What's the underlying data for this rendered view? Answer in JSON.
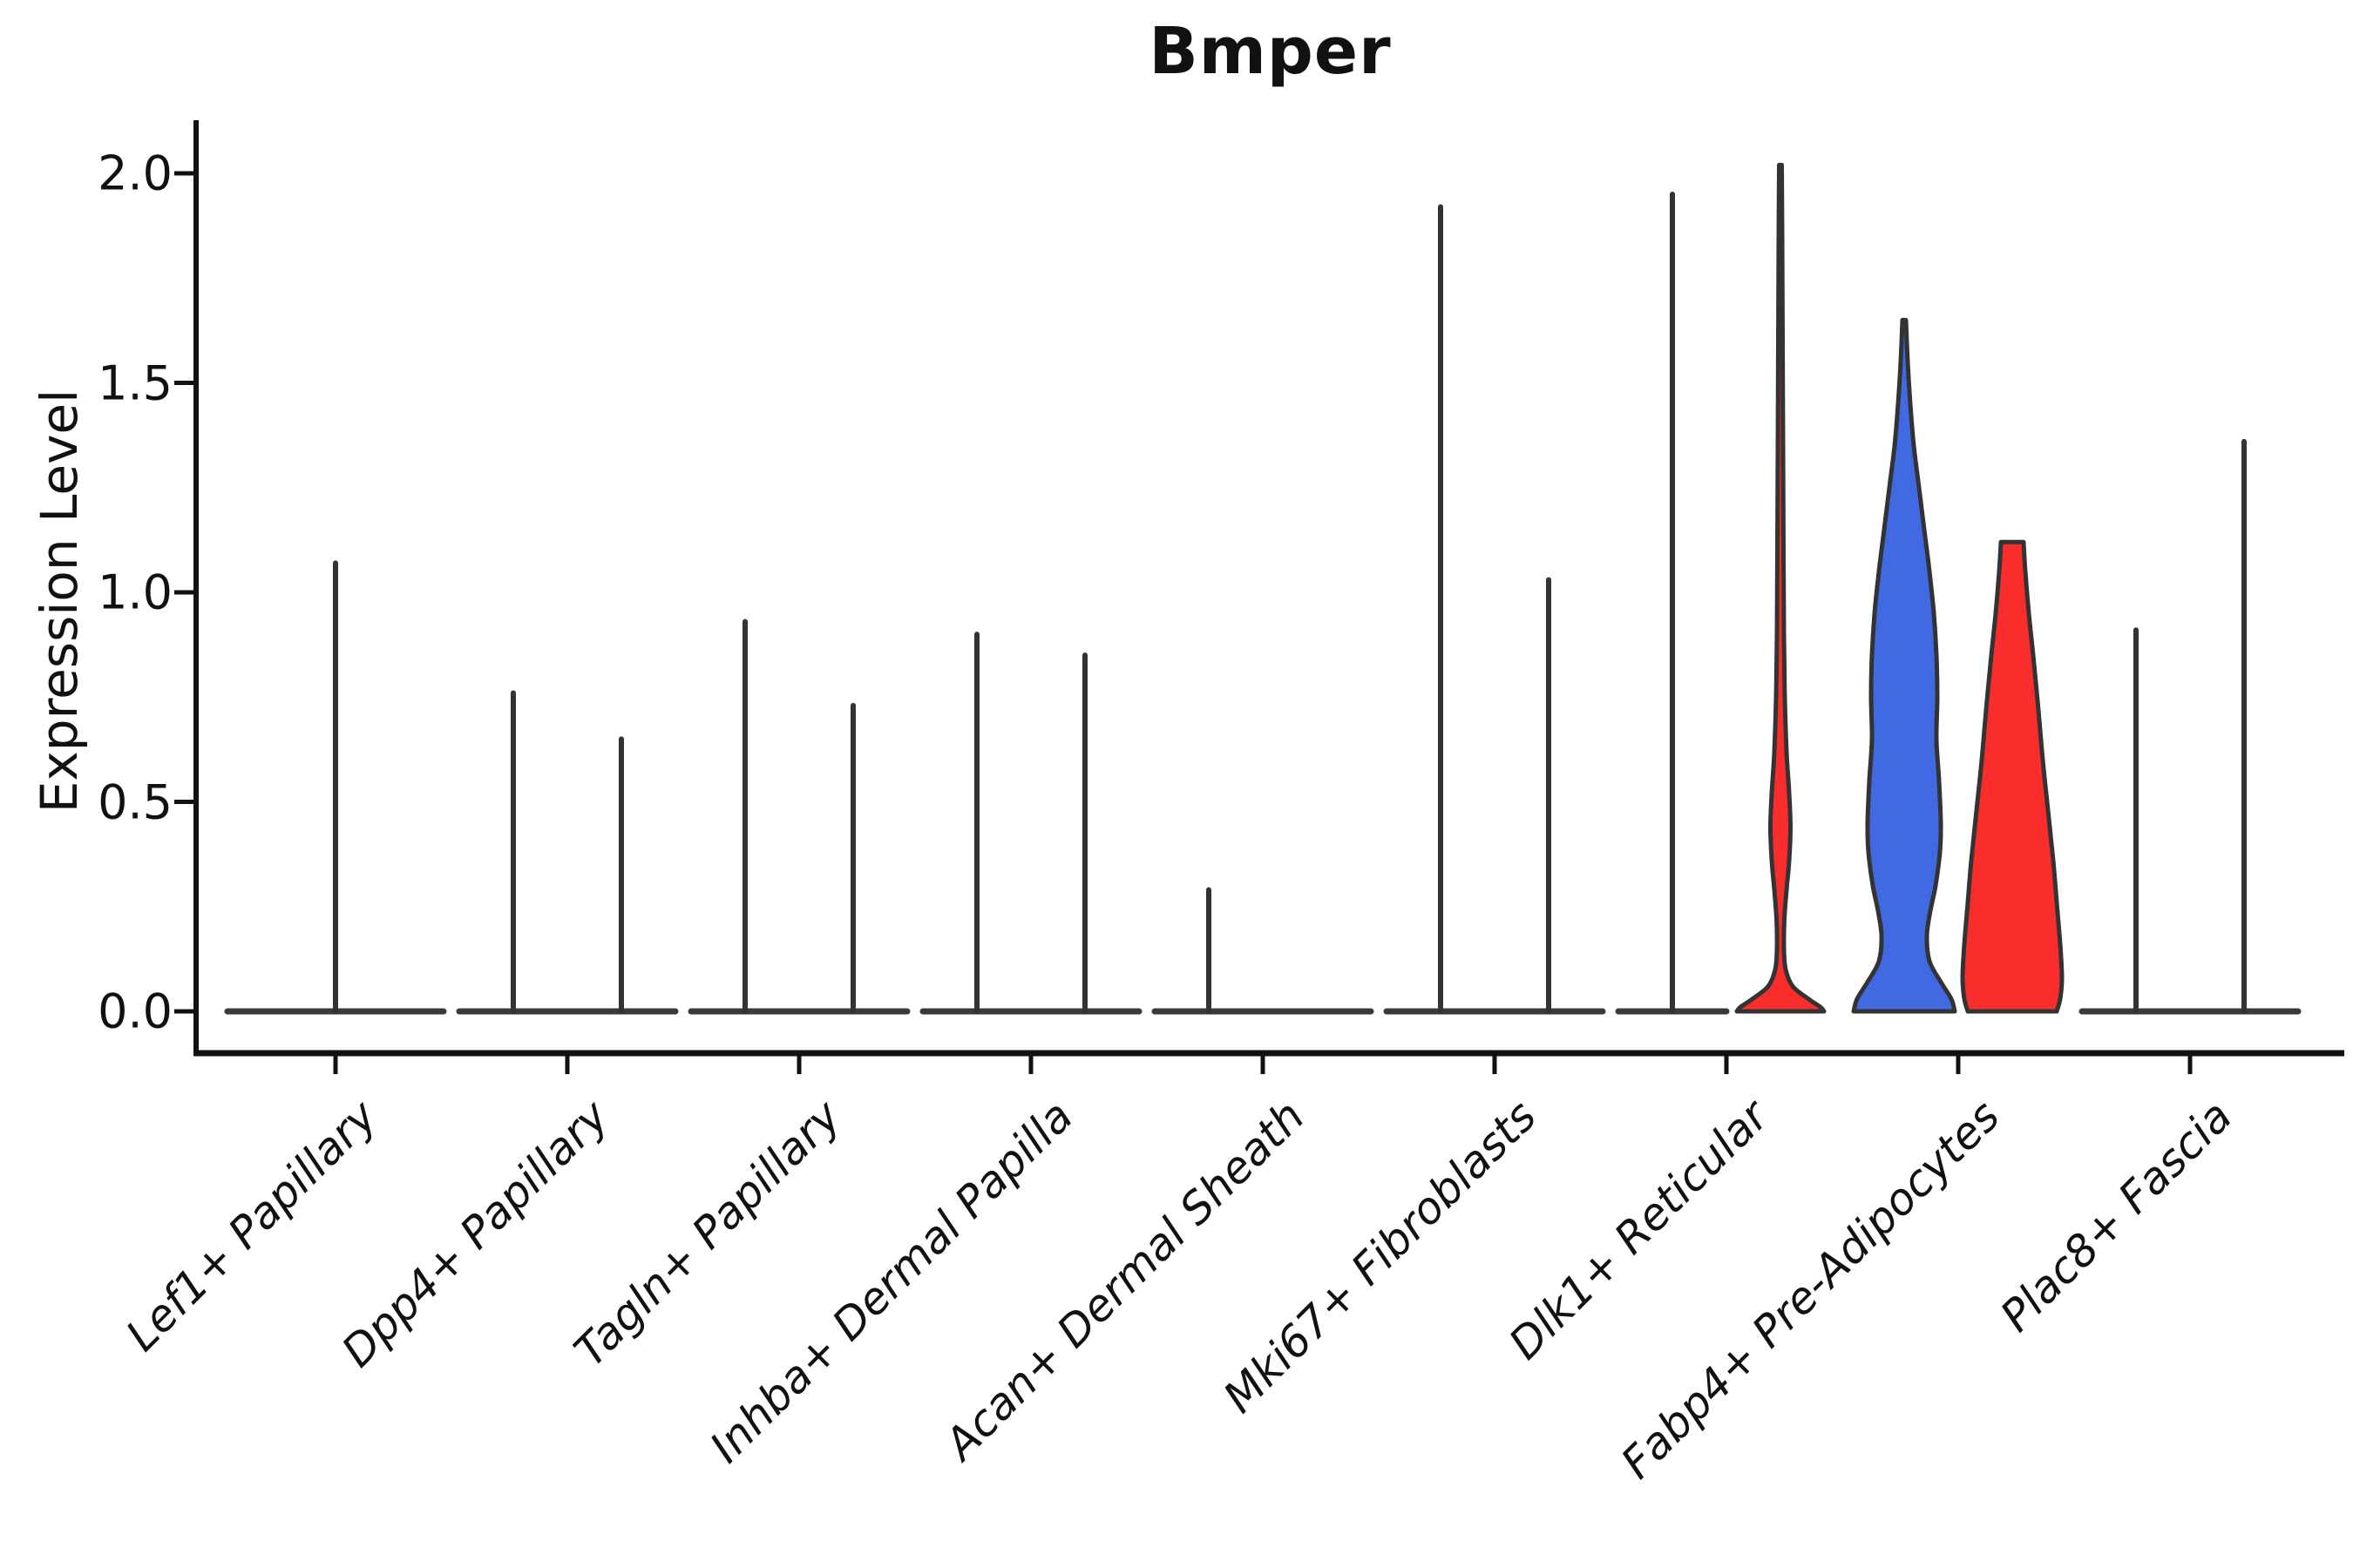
{
  "title": "Bmper",
  "y_axis": {
    "label": "Expression Level",
    "ticks": [
      {
        "label": "2.0",
        "value": 2.0
      },
      {
        "label": "1.5",
        "value": 1.5
      },
      {
        "label": "1.0",
        "value": 1.0
      },
      {
        "label": "0.5",
        "value": 0.5
      },
      {
        "label": "0.0",
        "value": 0.0
      }
    ]
  },
  "x_axis": {
    "categories": [
      "Lef1+ Papillary",
      "Dpp4+ Papillary",
      "Tagln+ Papillary",
      "Inhba+ Dermal Papilla",
      "Acan+ Dermal Sheath",
      "Mki67+ Fibroblasts",
      "Dlk1+ Reticular",
      "Fabp4+ Pre-Adipocytes",
      "Plac8+ Fascia"
    ],
    "label_rotation_deg": 45
  },
  "colors": {
    "blue": "#4169E1",
    "red": "#FA2D2D",
    "violin_outline": "#333333",
    "axis": "#111111"
  },
  "chart_data": {
    "type": "violin",
    "title": "Bmper",
    "ylabel": "Expression Level",
    "ylim": [
      0,
      2.1
    ],
    "grid": false,
    "legend": "none",
    "categories": [
      "Lef1+ Papillary",
      "Dpp4+ Papillary",
      "Tagln+ Papillary",
      "Inhba+ Dermal Papilla",
      "Acan+ Dermal Sheath",
      "Mki67+ Fibroblasts",
      "Dlk1+ Reticular",
      "Fabp4+ Pre-Adipocytes",
      "Plac8+ Fascia"
    ],
    "split_groups": [
      {
        "slot": "left",
        "color": "#4169E1"
      },
      {
        "slot": "right",
        "color": "#FA2D2D"
      }
    ],
    "violins": [
      {
        "category": "Lef1+ Papillary",
        "slot": "full",
        "shape": "spike",
        "max": 1.07,
        "fill": "none"
      },
      {
        "category": "Dpp4+ Papillary",
        "slot": "left",
        "shape": "spike",
        "max": 0.76,
        "fill": "none"
      },
      {
        "category": "Dpp4+ Papillary",
        "slot": "right",
        "shape": "spike",
        "max": 0.65,
        "fill": "none"
      },
      {
        "category": "Tagln+ Papillary",
        "slot": "left",
        "shape": "spike",
        "max": 0.93,
        "fill": "none"
      },
      {
        "category": "Tagln+ Papillary",
        "slot": "right",
        "shape": "spike",
        "max": 0.73,
        "fill": "none"
      },
      {
        "category": "Inhba+ Dermal Papilla",
        "slot": "left",
        "shape": "spike",
        "max": 0.9,
        "fill": "none"
      },
      {
        "category": "Inhba+ Dermal Papilla",
        "slot": "right",
        "shape": "spike",
        "max": 0.85,
        "fill": "none"
      },
      {
        "category": "Acan+ Dermal Sheath",
        "slot": "left",
        "shape": "spike",
        "max": 0.29,
        "fill": "none"
      },
      {
        "category": "Acan+ Dermal Sheath",
        "slot": "right",
        "shape": "flat",
        "max": 0.0,
        "fill": "none"
      },
      {
        "category": "Mki67+ Fibroblasts",
        "slot": "left",
        "shape": "spike",
        "max": 1.92,
        "fill": "none"
      },
      {
        "category": "Mki67+ Fibroblasts",
        "slot": "right",
        "shape": "spike",
        "max": 1.03,
        "fill": "none"
      },
      {
        "category": "Dlk1+ Reticular",
        "slot": "left",
        "shape": "spike",
        "max": 1.95,
        "fill": "none"
      },
      {
        "category": "Dlk1+ Reticular",
        "slot": "right",
        "shape": "density",
        "max": 2.02,
        "fill": "red",
        "profile": [
          [
            2.02,
            1.5
          ],
          [
            1.85,
            2
          ],
          [
            1.6,
            2.5
          ],
          [
            1.35,
            3
          ],
          [
            1.1,
            3.5
          ],
          [
            0.9,
            4
          ],
          [
            0.75,
            5
          ],
          [
            0.62,
            7
          ],
          [
            0.52,
            10
          ],
          [
            0.44,
            11.5
          ],
          [
            0.36,
            10
          ],
          [
            0.29,
            7
          ],
          [
            0.22,
            4.5
          ],
          [
            0.15,
            4
          ],
          [
            0.1,
            6
          ],
          [
            0.06,
            14
          ],
          [
            0.03,
            32
          ],
          [
            0.01,
            46
          ],
          [
            0.0,
            50
          ]
        ]
      },
      {
        "category": "Fabp4+ Pre-Adipocytes",
        "slot": "left",
        "shape": "density",
        "max": 1.65,
        "fill": "blue",
        "profile": [
          [
            1.65,
            2
          ],
          [
            1.55,
            4
          ],
          [
            1.45,
            7
          ],
          [
            1.35,
            11
          ],
          [
            1.25,
            17
          ],
          [
            1.15,
            23
          ],
          [
            1.05,
            29
          ],
          [
            0.95,
            34
          ],
          [
            0.85,
            37
          ],
          [
            0.75,
            38
          ],
          [
            0.65,
            37
          ],
          [
            0.55,
            40
          ],
          [
            0.45,
            42
          ],
          [
            0.38,
            41
          ],
          [
            0.3,
            36
          ],
          [
            0.24,
            30
          ],
          [
            0.18,
            26
          ],
          [
            0.12,
            29
          ],
          [
            0.07,
            42
          ],
          [
            0.03,
            54
          ],
          [
            0.0,
            58
          ]
        ]
      },
      {
        "category": "Fabp4+ Pre-Adipocytes",
        "slot": "right",
        "shape": "density",
        "max": 1.12,
        "fill": "red",
        "flat_top": true,
        "profile": [
          [
            1.12,
            13
          ],
          [
            1.05,
            15
          ],
          [
            0.95,
            19
          ],
          [
            0.85,
            24
          ],
          [
            0.72,
            30
          ],
          [
            0.6,
            35
          ],
          [
            0.48,
            41
          ],
          [
            0.36,
            47
          ],
          [
            0.26,
            51
          ],
          [
            0.16,
            55
          ],
          [
            0.08,
            57
          ],
          [
            0.03,
            55
          ],
          [
            0.0,
            51
          ]
        ]
      },
      {
        "category": "Plac8+ Fascia",
        "slot": "left",
        "shape": "spike",
        "max": 0.91,
        "fill": "none"
      },
      {
        "category": "Plac8+ Fascia",
        "slot": "right",
        "shape": "spike",
        "max": 1.36,
        "fill": "none"
      }
    ]
  }
}
